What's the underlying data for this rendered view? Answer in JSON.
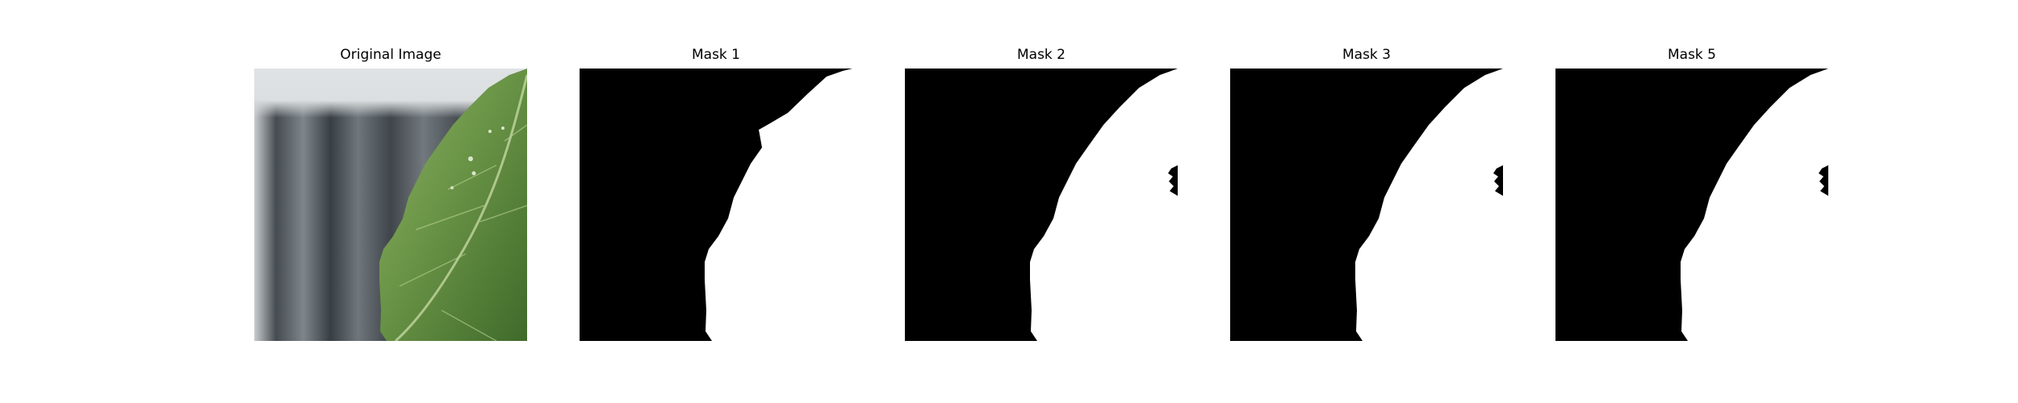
{
  "figure": {
    "panels": [
      {
        "id": "original",
        "title": "Original Image"
      },
      {
        "id": "mask1",
        "title": "Mask 1"
      },
      {
        "id": "mask2",
        "title": "Mask 2"
      },
      {
        "id": "mask3",
        "title": "Mask 3"
      },
      {
        "id": "mask5",
        "title": "Mask 5"
      }
    ]
  },
  "colors": {
    "background": "#ffffff",
    "mask_foreground": "#ffffff",
    "mask_background": "#000000",
    "leaf_green": "#5f8a3e",
    "backdrop_gray": "#5a6268"
  }
}
